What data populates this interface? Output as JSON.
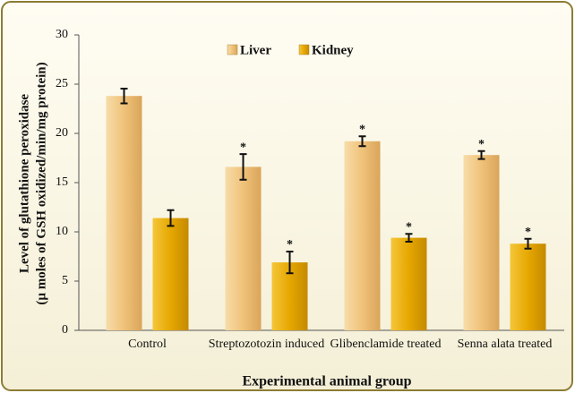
{
  "chart_data": {
    "type": "bar",
    "xlabel": "Experimental animal group",
    "ylabel": [
      "Level of glutathione peroxidase",
      "(µ moles of GSH oxidized/min/mg protein)"
    ],
    "categories": [
      "Control",
      "Streptozotozin induced",
      "Glibenclamide treated",
      "Senna alata treated"
    ],
    "series": [
      {
        "name": "Liver",
        "color": "#f0c27a",
        "values": [
          23.8,
          16.6,
          19.2,
          17.8
        ],
        "errors": [
          0.75,
          1.3,
          0.5,
          0.4
        ],
        "significance": [
          null,
          "*",
          "*",
          "*"
        ]
      },
      {
        "name": "Kidney",
        "color": "#e6a700",
        "values": [
          11.4,
          6.9,
          9.4,
          8.8
        ],
        "errors": [
          0.8,
          1.1,
          0.4,
          0.5
        ],
        "significance": [
          null,
          "*",
          "*",
          "*"
        ]
      }
    ],
    "ylim": [
      0,
      30
    ],
    "yticks": [
      0,
      5,
      10,
      15,
      20,
      25,
      30
    ],
    "legend": "top"
  }
}
